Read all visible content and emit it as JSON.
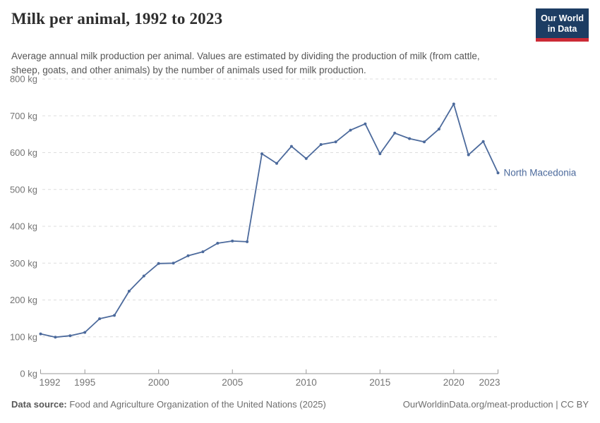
{
  "header": {
    "title": "Milk per animal, 1992 to 2023",
    "subtitle": "Average annual milk production per animal. Values are estimated by dividing the production of milk (from cattle, sheep, goats, and other animals) by the number of animals used for milk production.",
    "logo": {
      "line1": "Our World",
      "line2": "in Data"
    }
  },
  "chart_data": {
    "type": "line",
    "title": "Milk per animal, 1992 to 2023",
    "xlabel": "",
    "ylabel": "",
    "xlim": [
      1992,
      2023
    ],
    "ylim": [
      0,
      800
    ],
    "x_ticks": [
      1992,
      1995,
      2000,
      2005,
      2010,
      2015,
      2020,
      2023
    ],
    "y_ticks": [
      0,
      100,
      200,
      300,
      400,
      500,
      600,
      700,
      800
    ],
    "y_tick_suffix": " kg",
    "grid": "horizontal-dashed",
    "legend_position": "end-of-line",
    "series": [
      {
        "name": "North Macedonia",
        "color": "#4C6A9C",
        "x": [
          1992,
          1993,
          1994,
          1995,
          1996,
          1997,
          1998,
          1999,
          2000,
          2001,
          2002,
          2003,
          2004,
          2005,
          2006,
          2007,
          2008,
          2009,
          2010,
          2011,
          2012,
          2013,
          2014,
          2015,
          2016,
          2017,
          2018,
          2019,
          2020,
          2021,
          2022,
          2023
        ],
        "values": [
          108,
          99,
          103,
          112,
          149,
          158,
          224,
          265,
          299,
          300,
          320,
          331,
          354,
          360,
          358,
          597,
          571,
          617,
          584,
          622,
          629,
          661,
          678,
          597,
          653,
          638,
          629,
          664,
          732,
          594,
          630,
          545
        ]
      }
    ]
  },
  "footer": {
    "source_label": "Data source:",
    "source_text": " Food and Agriculture Organization of the United Nations (2025)",
    "rights": "OurWorldinData.org/meat-production | CC BY"
  },
  "colors": {
    "line": "#4C6A9C",
    "grid": "#dddddd",
    "axis": "#999999",
    "tick_label": "#747474",
    "logo_bg": "#1d3d63",
    "logo_red": "#cb2a36",
    "title": "#2e2e2e",
    "subtitle": "#555555"
  }
}
